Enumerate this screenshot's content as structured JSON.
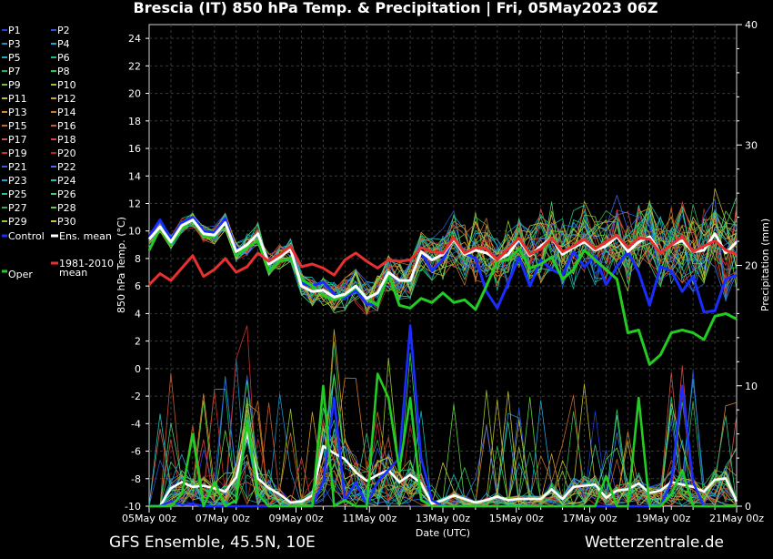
{
  "chart_data": {
    "type": "line",
    "title": "Brescia  (IT)  850 hPa Temp. & Precipitation | Fri, 05May2023 06Z",
    "ylabel": "850 hPa Temp. (°C)",
    "y2label": "Precipitation (mm)",
    "xlabel": "Date (UTC)",
    "ylim": [
      -10,
      25
    ],
    "y2lim": [
      0,
      40
    ],
    "x_ticks": [
      "05May 00z",
      "07May 00z",
      "09May 00z",
      "11May 00z",
      "13May 00z",
      "15May 00z",
      "17May 00z",
      "19May 00z",
      "21May 00z"
    ],
    "y_ticks": [
      -10,
      -8,
      -6,
      -4,
      -2,
      0,
      2,
      4,
      6,
      8,
      10,
      12,
      14,
      16,
      18,
      20,
      22,
      24
    ],
    "y2_ticks": [
      0,
      10,
      20,
      30,
      40
    ],
    "grid": true,
    "legend_position": "left",
    "legend": {
      "perturbations": [
        "P1",
        "P2",
        "P3",
        "P4",
        "P5",
        "P6",
        "P7",
        "P8",
        "P9",
        "P10",
        "P11",
        "P12",
        "P13",
        "P14",
        "P15",
        "P16",
        "P17",
        "P18",
        "P19",
        "P20",
        "P21",
        "P22",
        "P23",
        "P24",
        "P25",
        "P26",
        "P27",
        "P28",
        "P29",
        "P30"
      ],
      "control": "Control",
      "ens_mean": "Ens. mean",
      "climate": "1981-2010\nmean",
      "oper": "Oper"
    },
    "colors": {
      "control": "#1a2cff",
      "ens_mean": "#ffffff",
      "climate": "#e83030",
      "oper": "#22cc22",
      "perturbations": [
        "#1f3fd6",
        "#2a55d8",
        "#1e90c8",
        "#14a7c8",
        "#19b3b0",
        "#13c08a",
        "#18b86c",
        "#2ec84e",
        "#6cc43a",
        "#98c22e",
        "#c0b92a",
        "#d0a02a",
        "#d68a28",
        "#d27628",
        "#c86a26",
        "#c25a30",
        "#cc5540",
        "#d84040",
        "#cc3030",
        "#b02828",
        "#3060e0",
        "#4070e8",
        "#20a0d8",
        "#20c0c0",
        "#30c090",
        "#40d070",
        "#30b050",
        "#60d040",
        "#90c830",
        "#c8c040"
      ]
    },
    "series": [
      {
        "name": "Control",
        "values": [
          9.6,
          10.8,
          9.4,
          10.6,
          11.0,
          10.0,
          9.9,
          10.9,
          8.6,
          9.0,
          9.8,
          7.6,
          8.2,
          8.8,
          6.2,
          6.0,
          6.3,
          5.4,
          5.1,
          5.7,
          4.7,
          4.6,
          6.9,
          6.4,
          6.4,
          8.5,
          7.1,
          7.9,
          9.5,
          8.4,
          8.0,
          5.6,
          4.4,
          6.2,
          8.1,
          6.0,
          7.9,
          7.2,
          6.8,
          8.5,
          7.4,
          8.2,
          6.1,
          7.4,
          8.5,
          7.0,
          4.6,
          7.4,
          7.1,
          5.6,
          6.7,
          4.1,
          4.2,
          6.5,
          6.8
        ]
      },
      {
        "name": "Ens. mean",
        "values": [
          9.4,
          10.3,
          9.2,
          10.4,
          10.8,
          9.8,
          9.7,
          10.6,
          8.5,
          9.0,
          9.8,
          7.6,
          8.1,
          8.7,
          6.0,
          5.6,
          5.7,
          5.2,
          5.4,
          6.0,
          5.1,
          5.5,
          7.0,
          6.4,
          6.4,
          8.5,
          7.9,
          8.3,
          9.4,
          8.3,
          8.6,
          8.4,
          7.9,
          8.3,
          9.4,
          8.2,
          8.9,
          9.5,
          8.3,
          8.8,
          9.2,
          8.6,
          8.9,
          9.6,
          8.5,
          9.2,
          9.6,
          8.4,
          9.0,
          9.3,
          8.5,
          8.6,
          9.8,
          8.4,
          9.2
        ]
      },
      {
        "name": "1981-2010 mean",
        "values": [
          6.1,
          6.9,
          6.4,
          7.3,
          8.2,
          6.7,
          7.2,
          8.0,
          7.0,
          7.4,
          8.4,
          7.8,
          8.3,
          8.9,
          7.4,
          7.6,
          7.3,
          6.8,
          7.9,
          8.4,
          7.8,
          7.3,
          7.9,
          7.8,
          7.9,
          8.8,
          8.5,
          8.4,
          9.5,
          8.4,
          8.8,
          8.7,
          7.9,
          8.7,
          9.5,
          8.3,
          8.7,
          9.5,
          8.5,
          8.9,
          9.4,
          8.7,
          9.2,
          9.7,
          8.8,
          9.5,
          9.4,
          8.4,
          9.0,
          9.6,
          8.5,
          8.9,
          9.3,
          8.6,
          8.3
        ]
      },
      {
        "name": "Oper",
        "values": [
          8.6,
          10.2,
          9.0,
          10.2,
          10.8,
          9.6,
          9.6,
          10.6,
          8.2,
          8.8,
          9.3,
          7.0,
          7.8,
          8.0,
          6.5,
          6.0,
          5.3,
          5.0,
          5.3,
          5.9,
          5.1,
          4.6,
          6.9,
          4.6,
          4.4,
          5.1,
          4.8,
          5.5,
          4.8,
          5.0,
          4.3,
          6.0,
          7.8,
          7.9,
          8.7,
          7.3,
          7.6,
          8.1,
          6.5,
          7.2,
          8.6,
          7.9,
          7.2,
          6.5,
          2.6,
          2.8,
          0.3,
          1.0,
          2.6,
          2.8,
          2.6,
          2.1,
          3.8,
          4.0,
          3.6
        ]
      }
    ],
    "precip_series": [
      {
        "name": "Ens. mean",
        "values": [
          0.0,
          0.0,
          1.5,
          2.0,
          1.6,
          1.7,
          1.5,
          1.2,
          2.4,
          6.1,
          2.3,
          1.5,
          1.0,
          0.3,
          0.4,
          0.9,
          5.0,
          4.4,
          3.9,
          2.8,
          2.1,
          2.6,
          3.0,
          2.0,
          2.6,
          1.9,
          0.2,
          0.5,
          0.9,
          0.6,
          0.3,
          0.5,
          0.8,
          0.5,
          0.6,
          0.6,
          0.6,
          1.4,
          0.6,
          1.6,
          1.7,
          1.8,
          0.7,
          1.3,
          1.4,
          1.9,
          1.1,
          1.3,
          2.0,
          1.8,
          1.6,
          1.2,
          2.2,
          2.3,
          0.4
        ]
      },
      {
        "name": "Control",
        "values": [
          0.0,
          0.0,
          0.4,
          0.1,
          0.2,
          0.0,
          0.0,
          0.0,
          0.0,
          0.0,
          0.0,
          0.0,
          0.0,
          0.0,
          0.0,
          0.0,
          2.0,
          9.0,
          0.5,
          2.0,
          0.1,
          2.0,
          3.0,
          4.0,
          15.0,
          4.0,
          0.5,
          0.0,
          0.0,
          0.0,
          0.0,
          0.0,
          0.0,
          0.0,
          0.0,
          0.0,
          0.0,
          0.0,
          0.0,
          0.0,
          0.0,
          0.0,
          0.0,
          0.0,
          0.0,
          0.0,
          0.0,
          0.0,
          2.0,
          10.0,
          2.0,
          0.0,
          0.0,
          0.0,
          0.0
        ]
      },
      {
        "name": "Oper",
        "values": [
          0.0,
          0.0,
          0.0,
          1.0,
          6.0,
          0.0,
          2.0,
          0.0,
          0.5,
          7.0,
          1.0,
          0.0,
          0.0,
          0.0,
          0.0,
          0.0,
          10.0,
          0.0,
          0.5,
          0.0,
          0.0,
          11.0,
          9.0,
          3.0,
          9.0,
          0.5,
          0.0,
          0.0,
          0.0,
          0.0,
          0.0,
          0.0,
          0.0,
          0.0,
          0.0,
          0.0,
          0.0,
          0.0,
          0.0,
          0.0,
          0.0,
          0.0,
          2.5,
          0.0,
          0.0,
          9.0,
          0.0,
          0.0,
          1.0,
          3.0,
          0.0,
          0.0,
          0.0,
          0.0,
          0.0
        ]
      }
    ]
  },
  "footer": {
    "left": "GFS Ensemble, 45.5N, 10E",
    "right": "Wetterzentrale.de"
  }
}
